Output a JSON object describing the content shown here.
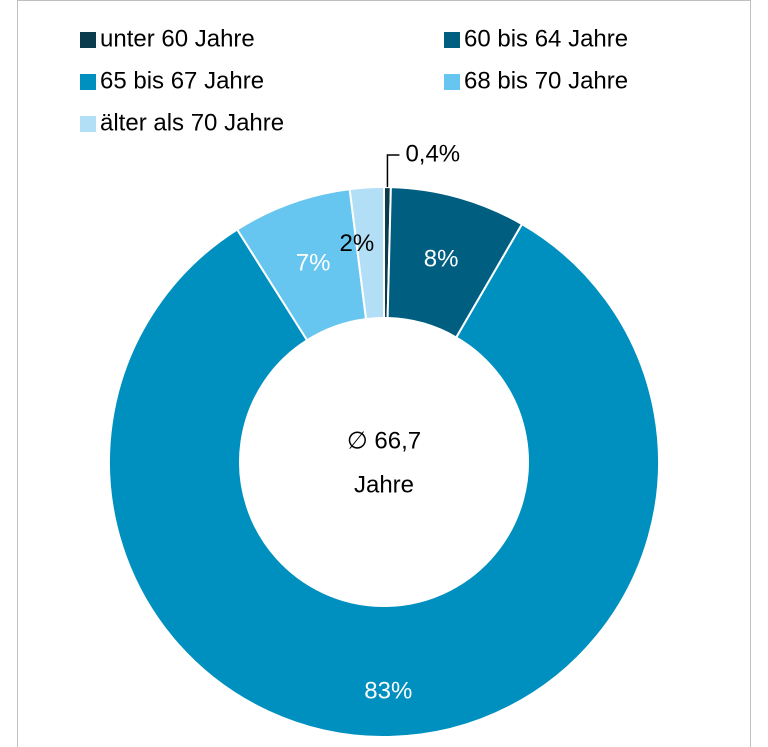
{
  "chart_data": {
    "type": "donut",
    "categories": [
      "unter 60 Jahre",
      "60 bis 64 Jahre",
      "65 bis 67 Jahre",
      "68 bis 70 Jahre",
      "älter als 70 Jahre"
    ],
    "values": [
      0.4,
      8,
      83,
      7,
      2
    ],
    "value_labels": [
      "0,4%",
      "8%",
      "83%",
      "7%",
      "2%"
    ],
    "colors": [
      "#0b3c4d",
      "#005f80",
      "#0090bf",
      "#66c6ef",
      "#b3dff6"
    ],
    "center_label": [
      "∅ 66,7",
      "Jahre"
    ],
    "legend": "top"
  }
}
